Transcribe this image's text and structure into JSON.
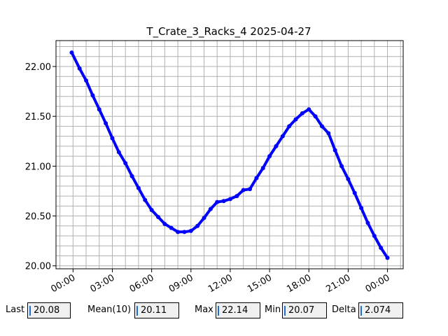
{
  "chart_data": {
    "type": "line",
    "title": "T_Crate_3_Racks_4 2025-04-27",
    "xlabel": "",
    "ylabel": "",
    "x_ticks": [
      "00:00",
      "03:00",
      "06:00",
      "09:00",
      "12:00",
      "15:00",
      "18:00",
      "21:00",
      "00:00"
    ],
    "y_ticks": [
      "20.00",
      "20.50",
      "21.00",
      "21.50",
      "22.00"
    ],
    "xlim_hours": [
      -1.3,
      25.2
    ],
    "ylim": [
      19.97,
      22.26
    ],
    "grid": true,
    "series": [
      {
        "color": "#0000ff",
        "x_hours": [
          -0.1,
          0.5,
          1.0,
          1.5,
          2.0,
          2.5,
          3.0,
          3.5,
          4.0,
          4.5,
          5.0,
          5.5,
          6.0,
          6.5,
          7.0,
          7.5,
          8.0,
          8.5,
          9.0,
          9.5,
          10.0,
          10.5,
          11.0,
          11.5,
          12.0,
          12.5,
          13.0,
          13.5,
          14.0,
          14.5,
          15.0,
          15.5,
          16.0,
          16.5,
          17.0,
          17.5,
          18.0,
          18.5,
          19.0,
          19.5,
          20.0,
          20.5,
          21.0,
          21.5,
          22.0,
          22.5,
          23.0,
          23.5,
          24.0
        ],
        "values": [
          22.14,
          21.98,
          21.86,
          21.71,
          21.57,
          21.43,
          21.28,
          21.14,
          21.03,
          20.9,
          20.78,
          20.66,
          20.56,
          20.49,
          20.42,
          20.38,
          20.34,
          20.34,
          20.35,
          20.4,
          20.48,
          20.57,
          20.64,
          20.65,
          20.67,
          20.7,
          20.76,
          20.77,
          20.88,
          20.98,
          21.1,
          21.2,
          21.3,
          21.4,
          21.47,
          21.53,
          21.57,
          21.5,
          21.4,
          21.33,
          21.16,
          21.0,
          20.87,
          20.73,
          20.58,
          20.43,
          20.3,
          20.18,
          20.08
        ]
      }
    ]
  },
  "stats": {
    "last_label": "Last",
    "last_value": "20.08",
    "mean_label": "Mean(10)",
    "mean_value": "20.11",
    "max_label": "Max",
    "max_value": "22.14",
    "min_label": "Min",
    "min_value": "20.07",
    "delta_label": "Delta",
    "delta_value": "2.074"
  }
}
